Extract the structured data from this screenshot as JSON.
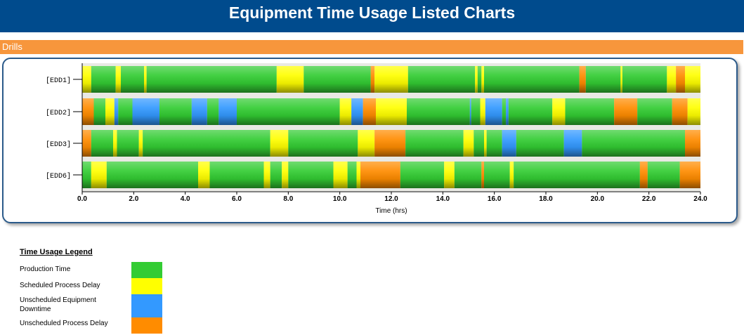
{
  "page": {
    "title": "Equipment Time Usage Listed Charts"
  },
  "section": {
    "label": "Drills"
  },
  "colors": {
    "production": "#33cc33",
    "scheduled_process_delay": "#ffff00",
    "unscheduled_equipment_downtime": "#3399ff",
    "unscheduled_process_delay": "#ff8c00"
  },
  "legend": {
    "title": "Time Usage Legend",
    "items": [
      {
        "key": "production",
        "label": "Production Time",
        "color": "#33cc33"
      },
      {
        "key": "scheduled_process_delay",
        "label": "Scheduled Process Delay",
        "color": "#ffff00"
      },
      {
        "key": "unscheduled_equipment_downtime",
        "label": "Unscheduled Equipment Downtime",
        "color": "#3399ff"
      },
      {
        "key": "unscheduled_process_delay",
        "label": "Unscheduled Process Delay",
        "color": "#ff8c00"
      }
    ]
  },
  "chart_data": {
    "type": "bar",
    "orientation": "horizontal-stacked-timeline",
    "title": "",
    "xlabel": "Time (hrs)",
    "ylabel": "",
    "xlim": [
      0,
      24
    ],
    "xticks": [
      "0.0",
      "2.0",
      "4.0",
      "6.0",
      "8.0",
      "10.0",
      "12.0",
      "14.0",
      "16.0",
      "18.0",
      "20.0",
      "22.0",
      "24.0"
    ],
    "grid": false,
    "categories": [
      "[EDD1]",
      "[EDD2]",
      "[EDD3]",
      "[EDD6]"
    ],
    "rows": [
      {
        "name": "[EDD1]",
        "segments": [
          {
            "start": 0.0,
            "end": 0.35,
            "state": "scheduled_process_delay"
          },
          {
            "start": 0.35,
            "end": 1.3,
            "state": "production"
          },
          {
            "start": 1.3,
            "end": 1.5,
            "state": "scheduled_process_delay"
          },
          {
            "start": 1.5,
            "end": 2.4,
            "state": "production"
          },
          {
            "start": 2.4,
            "end": 2.5,
            "state": "scheduled_process_delay"
          },
          {
            "start": 2.5,
            "end": 7.55,
            "state": "production"
          },
          {
            "start": 7.55,
            "end": 8.6,
            "state": "scheduled_process_delay"
          },
          {
            "start": 8.6,
            "end": 11.2,
            "state": "production"
          },
          {
            "start": 11.2,
            "end": 11.35,
            "state": "unscheduled_process_delay"
          },
          {
            "start": 11.35,
            "end": 12.65,
            "state": "scheduled_process_delay"
          },
          {
            "start": 12.65,
            "end": 15.25,
            "state": "production"
          },
          {
            "start": 15.25,
            "end": 15.35,
            "state": "scheduled_process_delay"
          },
          {
            "start": 15.35,
            "end": 15.5,
            "state": "production"
          },
          {
            "start": 15.5,
            "end": 15.6,
            "state": "scheduled_process_delay"
          },
          {
            "start": 15.6,
            "end": 19.3,
            "state": "production"
          },
          {
            "start": 19.3,
            "end": 19.55,
            "state": "unscheduled_process_delay"
          },
          {
            "start": 19.55,
            "end": 20.9,
            "state": "production"
          },
          {
            "start": 20.9,
            "end": 20.97,
            "state": "scheduled_process_delay"
          },
          {
            "start": 20.97,
            "end": 22.7,
            "state": "production"
          },
          {
            "start": 22.7,
            "end": 23.05,
            "state": "scheduled_process_delay"
          },
          {
            "start": 23.05,
            "end": 23.4,
            "state": "unscheduled_process_delay"
          },
          {
            "start": 23.4,
            "end": 24.0,
            "state": "scheduled_process_delay"
          }
        ]
      },
      {
        "name": "[EDD2]",
        "segments": [
          {
            "start": 0.0,
            "end": 0.45,
            "state": "unscheduled_process_delay"
          },
          {
            "start": 0.45,
            "end": 0.9,
            "state": "production"
          },
          {
            "start": 0.9,
            "end": 1.25,
            "state": "scheduled_process_delay"
          },
          {
            "start": 1.25,
            "end": 1.4,
            "state": "unscheduled_equipment_downtime"
          },
          {
            "start": 1.4,
            "end": 1.95,
            "state": "production"
          },
          {
            "start": 1.95,
            "end": 3.0,
            "state": "unscheduled_equipment_downtime"
          },
          {
            "start": 3.0,
            "end": 4.25,
            "state": "production"
          },
          {
            "start": 4.25,
            "end": 4.85,
            "state": "unscheduled_equipment_downtime"
          },
          {
            "start": 4.85,
            "end": 5.3,
            "state": "production"
          },
          {
            "start": 5.3,
            "end": 6.0,
            "state": "unscheduled_equipment_downtime"
          },
          {
            "start": 6.0,
            "end": 10.0,
            "state": "production"
          },
          {
            "start": 10.0,
            "end": 10.45,
            "state": "scheduled_process_delay"
          },
          {
            "start": 10.45,
            "end": 10.9,
            "state": "unscheduled_equipment_downtime"
          },
          {
            "start": 10.9,
            "end": 11.4,
            "state": "unscheduled_process_delay"
          },
          {
            "start": 11.4,
            "end": 12.6,
            "state": "scheduled_process_delay"
          },
          {
            "start": 12.6,
            "end": 15.05,
            "state": "production"
          },
          {
            "start": 15.05,
            "end": 15.1,
            "state": "unscheduled_equipment_downtime"
          },
          {
            "start": 15.1,
            "end": 15.45,
            "state": "production"
          },
          {
            "start": 15.45,
            "end": 15.65,
            "state": "scheduled_process_delay"
          },
          {
            "start": 15.65,
            "end": 16.3,
            "state": "unscheduled_equipment_downtime"
          },
          {
            "start": 16.3,
            "end": 16.45,
            "state": "production"
          },
          {
            "start": 16.45,
            "end": 16.55,
            "state": "unscheduled_equipment_downtime"
          },
          {
            "start": 16.55,
            "end": 18.25,
            "state": "production"
          },
          {
            "start": 18.25,
            "end": 18.75,
            "state": "scheduled_process_delay"
          },
          {
            "start": 18.75,
            "end": 20.65,
            "state": "production"
          },
          {
            "start": 20.65,
            "end": 21.55,
            "state": "unscheduled_process_delay"
          },
          {
            "start": 21.55,
            "end": 22.9,
            "state": "production"
          },
          {
            "start": 22.9,
            "end": 23.5,
            "state": "unscheduled_process_delay"
          },
          {
            "start": 23.5,
            "end": 24.0,
            "state": "scheduled_process_delay"
          }
        ]
      },
      {
        "name": "[EDD3]",
        "segments": [
          {
            "start": 0.0,
            "end": 0.35,
            "state": "unscheduled_process_delay"
          },
          {
            "start": 0.35,
            "end": 1.2,
            "state": "production"
          },
          {
            "start": 1.2,
            "end": 1.35,
            "state": "scheduled_process_delay"
          },
          {
            "start": 1.35,
            "end": 2.2,
            "state": "production"
          },
          {
            "start": 2.2,
            "end": 2.35,
            "state": "scheduled_process_delay"
          },
          {
            "start": 2.35,
            "end": 7.3,
            "state": "production"
          },
          {
            "start": 7.3,
            "end": 8.0,
            "state": "scheduled_process_delay"
          },
          {
            "start": 8.0,
            "end": 10.7,
            "state": "production"
          },
          {
            "start": 10.7,
            "end": 11.35,
            "state": "scheduled_process_delay"
          },
          {
            "start": 11.35,
            "end": 12.55,
            "state": "unscheduled_process_delay"
          },
          {
            "start": 12.55,
            "end": 14.8,
            "state": "production"
          },
          {
            "start": 14.8,
            "end": 15.2,
            "state": "scheduled_process_delay"
          },
          {
            "start": 15.2,
            "end": 15.6,
            "state": "production"
          },
          {
            "start": 15.6,
            "end": 15.7,
            "state": "scheduled_process_delay"
          },
          {
            "start": 15.7,
            "end": 16.3,
            "state": "production"
          },
          {
            "start": 16.3,
            "end": 16.85,
            "state": "unscheduled_equipment_downtime"
          },
          {
            "start": 16.85,
            "end": 18.7,
            "state": "production"
          },
          {
            "start": 18.7,
            "end": 19.4,
            "state": "unscheduled_equipment_downtime"
          },
          {
            "start": 19.4,
            "end": 23.4,
            "state": "production"
          },
          {
            "start": 23.4,
            "end": 24.0,
            "state": "unscheduled_process_delay"
          }
        ]
      },
      {
        "name": "[EDD6]",
        "segments": [
          {
            "start": 0.0,
            "end": 0.35,
            "state": "production"
          },
          {
            "start": 0.35,
            "end": 0.95,
            "state": "scheduled_process_delay"
          },
          {
            "start": 0.95,
            "end": 4.5,
            "state": "production"
          },
          {
            "start": 4.5,
            "end": 4.95,
            "state": "scheduled_process_delay"
          },
          {
            "start": 4.95,
            "end": 7.05,
            "state": "production"
          },
          {
            "start": 7.05,
            "end": 7.3,
            "state": "scheduled_process_delay"
          },
          {
            "start": 7.3,
            "end": 7.75,
            "state": "production"
          },
          {
            "start": 7.75,
            "end": 8.0,
            "state": "scheduled_process_delay"
          },
          {
            "start": 8.0,
            "end": 9.75,
            "state": "production"
          },
          {
            "start": 9.75,
            "end": 10.3,
            "state": "scheduled_process_delay"
          },
          {
            "start": 10.3,
            "end": 10.65,
            "state": "production"
          },
          {
            "start": 10.65,
            "end": 10.8,
            "state": "scheduled_process_delay"
          },
          {
            "start": 10.8,
            "end": 12.35,
            "state": "unscheduled_process_delay"
          },
          {
            "start": 12.35,
            "end": 14.05,
            "state": "production"
          },
          {
            "start": 14.05,
            "end": 14.45,
            "state": "scheduled_process_delay"
          },
          {
            "start": 14.45,
            "end": 15.5,
            "state": "production"
          },
          {
            "start": 15.5,
            "end": 15.6,
            "state": "unscheduled_process_delay"
          },
          {
            "start": 15.6,
            "end": 16.6,
            "state": "production"
          },
          {
            "start": 16.6,
            "end": 16.75,
            "state": "scheduled_process_delay"
          },
          {
            "start": 16.75,
            "end": 21.65,
            "state": "production"
          },
          {
            "start": 21.65,
            "end": 21.95,
            "state": "unscheduled_process_delay"
          },
          {
            "start": 21.95,
            "end": 23.2,
            "state": "production"
          },
          {
            "start": 23.2,
            "end": 24.0,
            "state": "unscheduled_process_delay"
          }
        ]
      }
    ]
  }
}
